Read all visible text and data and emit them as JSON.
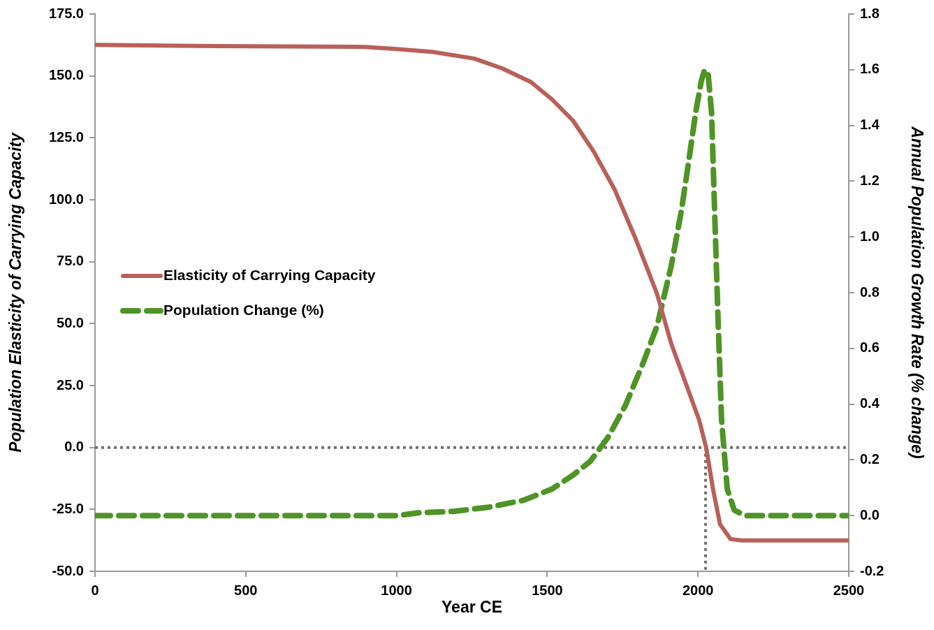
{
  "chart_data": {
    "type": "line",
    "xlabel": "Year CE",
    "ylabel": "Population Elasticity of Carrying Capacity",
    "y2label": "Annual Population Growth Rate (% change)",
    "xlim": [
      0,
      2500
    ],
    "xticks": [
      0,
      500,
      1000,
      1500,
      2000,
      2500
    ],
    "ylim": [
      -50,
      175
    ],
    "yticks": [
      {
        "value": -50,
        "label": "-50.0"
      },
      {
        "value": -25,
        "label": "-25.0"
      },
      {
        "value": 0,
        "label": "0.0"
      },
      {
        "value": 25,
        "label": "25.0"
      },
      {
        "value": 50,
        "label": "50.0"
      },
      {
        "value": 75,
        "label": "75.0"
      },
      {
        "value": 100,
        "label": "100.0"
      },
      {
        "value": 125,
        "label": "125.0"
      },
      {
        "value": 150,
        "label": "150.0"
      },
      {
        "value": 175,
        "label": "175.0"
      }
    ],
    "y2lim": [
      -0.2,
      1.8
    ],
    "y2ticks": [
      -0.2,
      {
        "value": 0,
        "label": "0.0"
      },
      0.2,
      0.4,
      0.6,
      0.8,
      {
        "value": 1,
        "label": "1.0"
      },
      1.2,
      1.4,
      1.6,
      1.8
    ],
    "grid": false,
    "legend": "left",
    "marker": "none",
    "ref_lines": [
      {
        "axis": "y",
        "value": 0,
        "color": "#707070",
        "line_style": "dotted"
      },
      {
        "axis": "x",
        "value": 2025,
        "color": "#707070",
        "line_style": "dotted"
      }
    ],
    "series": [
      {
        "name": "Elasticity of Carrying Capacity",
        "color": "#b9605a",
        "line_style": "solid",
        "x": [
          0,
          408,
          897,
          1002,
          1118,
          1258,
          1351,
          1445,
          1515,
          1585,
          1654,
          1724,
          1794,
          1864,
          1911,
          1957,
          2004,
          2027,
          2050,
          2073,
          2108,
          2143,
          2500
        ],
        "values": [
          162.5,
          162,
          161.7,
          160.8,
          159.7,
          157,
          153,
          147.6,
          140.6,
          132,
          119.5,
          104,
          84,
          62,
          42,
          26.7,
          11,
          0,
          -17,
          -31,
          -37,
          -37.5,
          -37.5
        ]
      },
      {
        "name": "Population Change (%)",
        "color": "#4f9426",
        "line_style": "dashed",
        "axis": "y2",
        "x": [
          0,
          1002,
          1072,
          1188,
          1305,
          1421,
          1515,
          1585,
          1643,
          1701,
          1759,
          1817,
          1864,
          1911,
          1945,
          1969,
          1992,
          2011,
          2022,
          2034,
          2045,
          2055,
          2066,
          2078,
          2097,
          2120,
          2155,
          2500
        ],
        "values": [
          0,
          0,
          0.01,
          0.015,
          0.03,
          0.055,
          0.095,
          0.145,
          0.195,
          0.28,
          0.395,
          0.545,
          0.68,
          0.895,
          1.095,
          1.27,
          1.445,
          1.56,
          1.6,
          1.58,
          1.445,
          1.095,
          0.72,
          0.345,
          0.095,
          0.02,
          0,
          0
        ]
      }
    ]
  }
}
